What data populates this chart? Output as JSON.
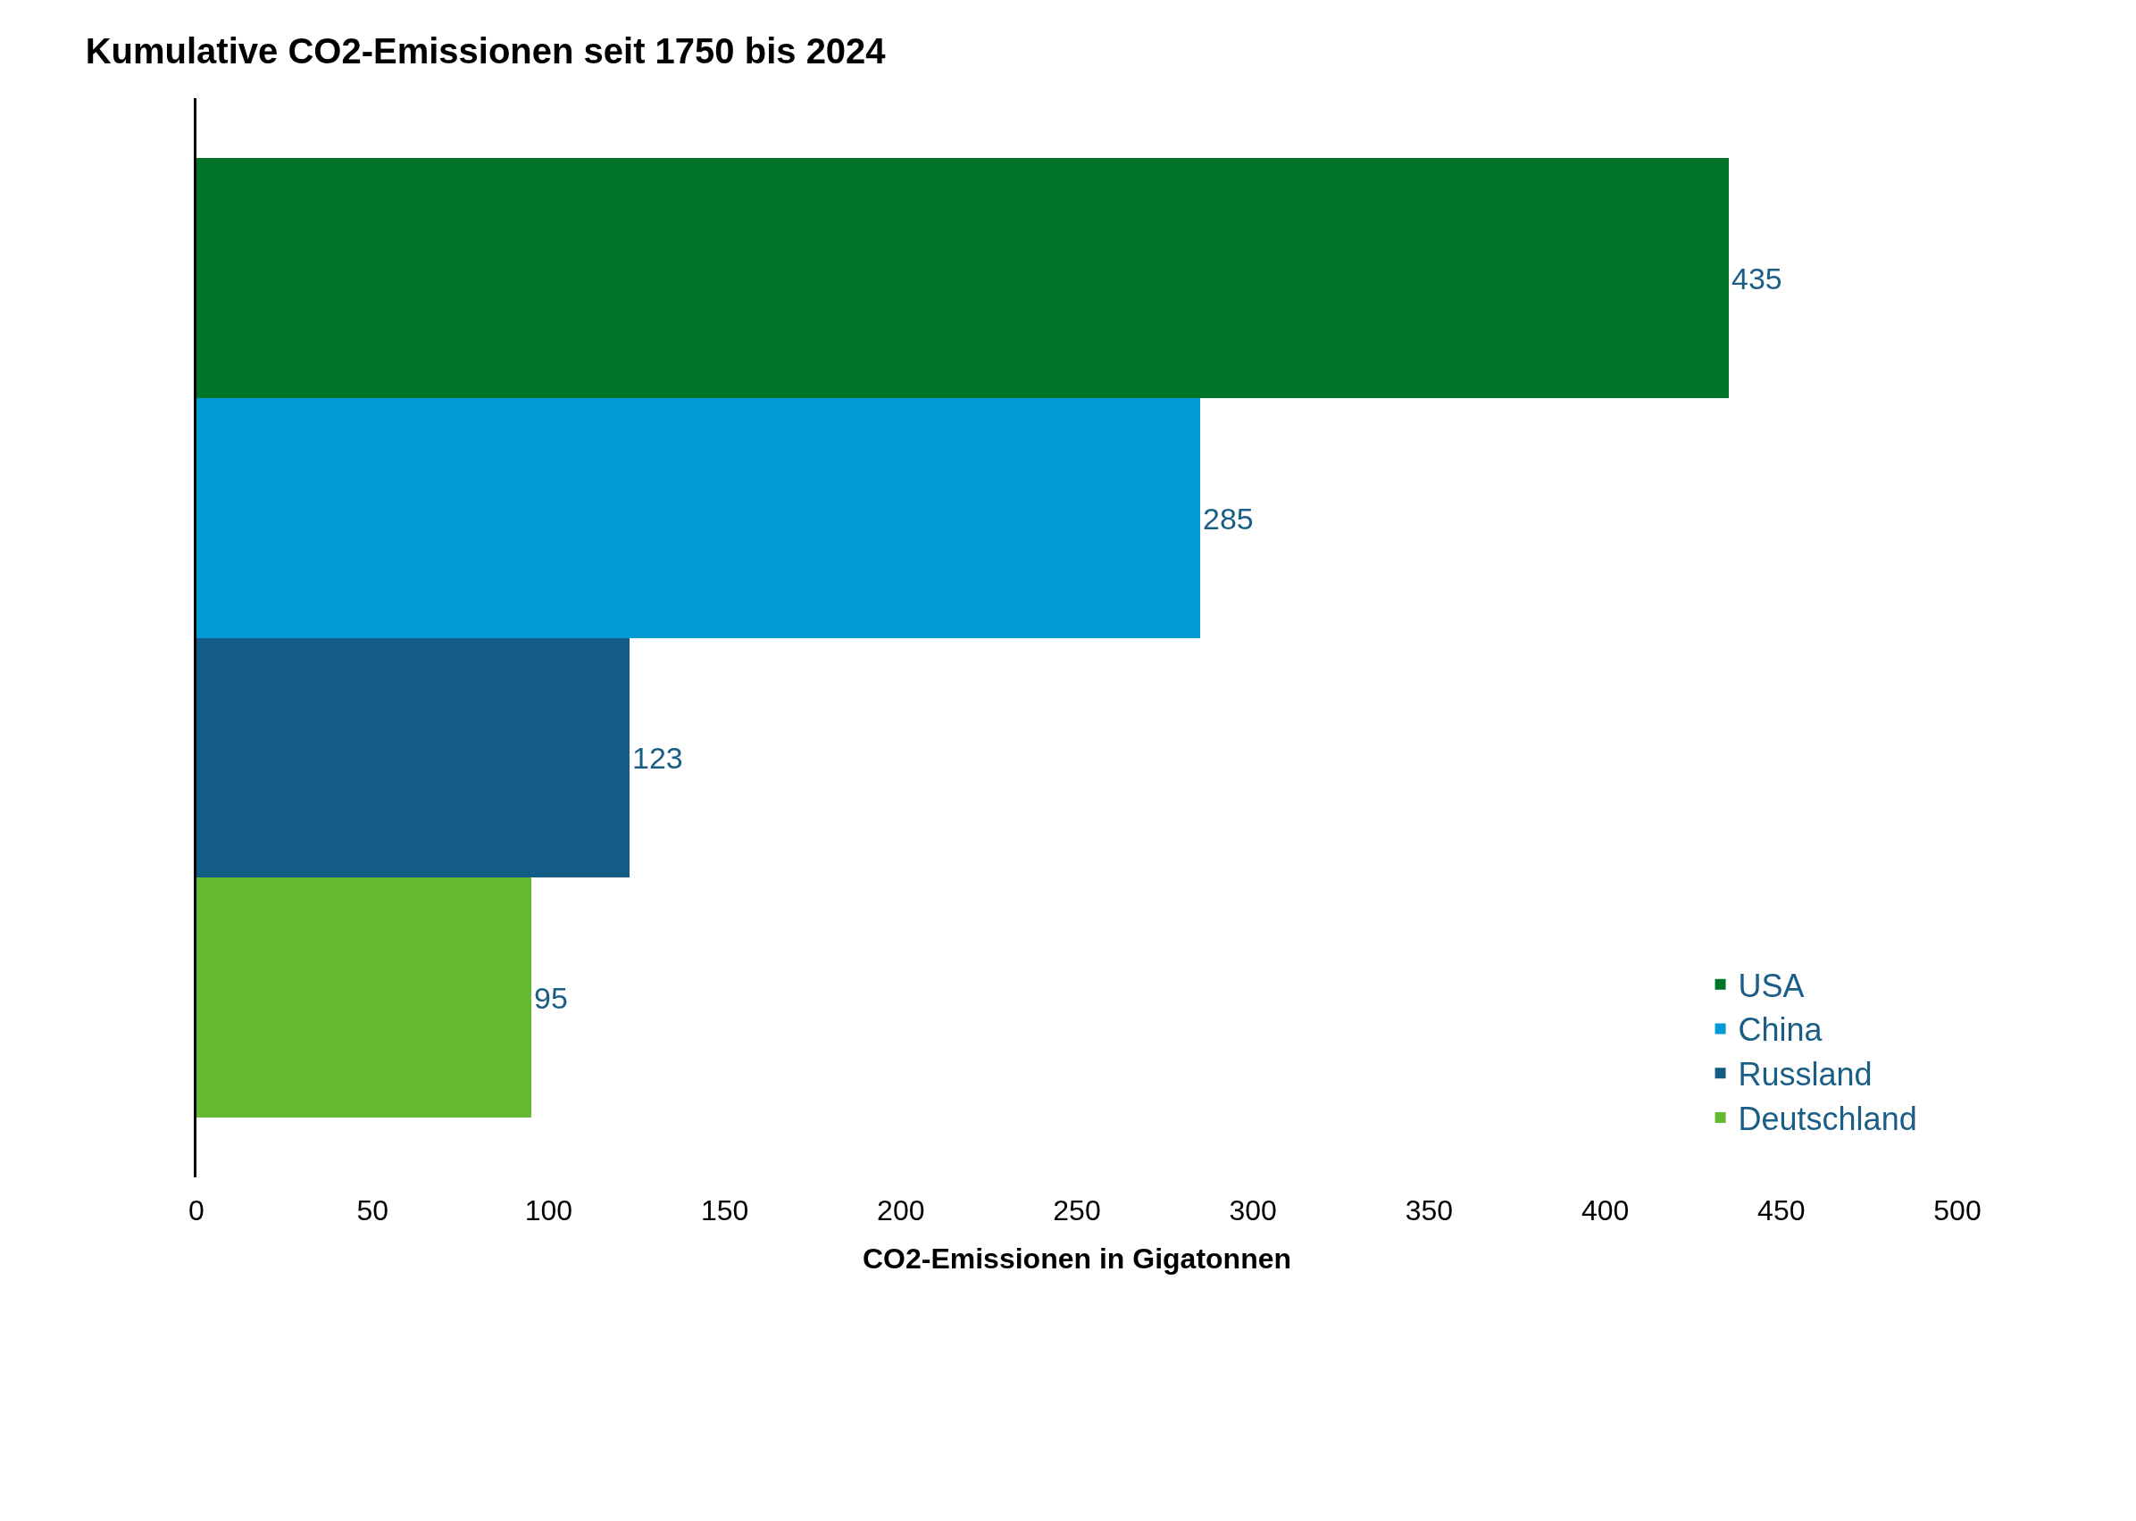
{
  "chart_data": {
    "type": "bar",
    "orientation": "horizontal",
    "stacked": true,
    "title": "Kumulative CO2-Emissionen seit 1750 bis 2024",
    "xlabel": "CO2-Emissionen in Gigatonnen",
    "categories": [
      null,
      null,
      null,
      null
    ],
    "series": [
      {
        "name": "USA",
        "color": "#00752a",
        "values": [
          435,
          null,
          null,
          null
        ]
      },
      {
        "name": "China",
        "color": "#009bd5",
        "values": [
          null,
          285,
          null,
          null
        ]
      },
      {
        "name": "Russland",
        "color": "#135c85",
        "values": [
          null,
          null,
          123,
          null
        ]
      },
      {
        "name": "Deutschland",
        "color": "#64b931",
        "values": [
          null,
          null,
          null,
          95
        ]
      }
    ],
    "xlim": [
      0,
      500
    ],
    "xticks": [
      0,
      50,
      100,
      150,
      200,
      250,
      300,
      350,
      400,
      450,
      500
    ],
    "data_labels": true,
    "legend": "bottom right",
    "tick_labels": "x"
  }
}
